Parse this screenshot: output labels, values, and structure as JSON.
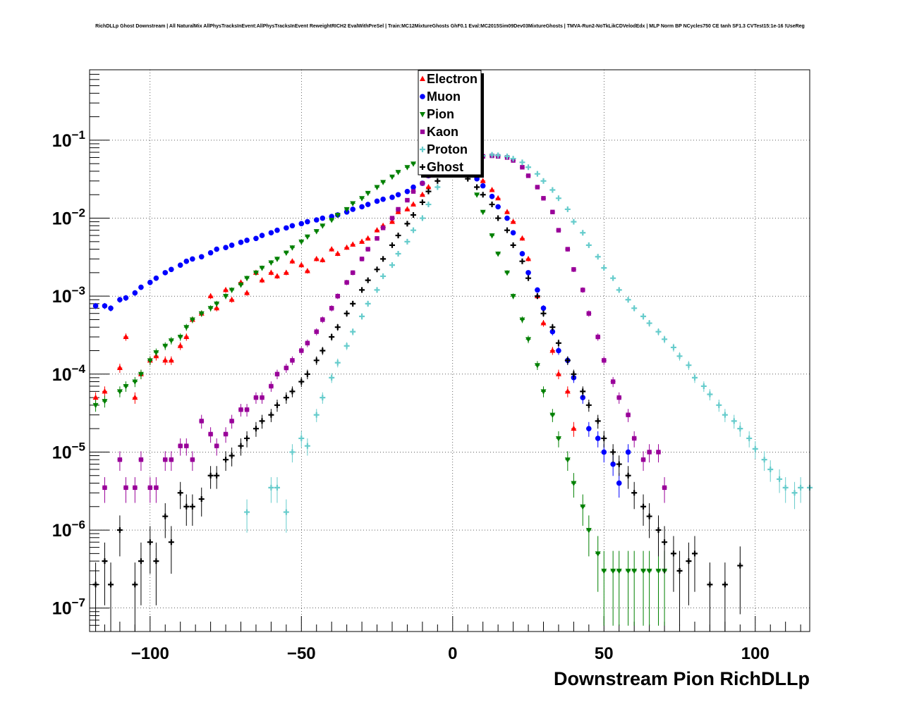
{
  "chart_data": {
    "type": "scatter",
    "title": "RichDLLp Ghost Downstream | All NaturalMix AllPhysTracksInEvent:AllPhysTracksInEvent ReweightRICH2 EvalWithPreSel | Train:MC12MixtureGhosts GhF0.1 Eval:MC2015Sim09Dev03MixtureGhosts | TMVA-Run2-NoTkLikCDVelodEdx | MLP Norm BP NCycles750 CE tanh SF1.3 CVTest15:1e-16 !UseReg",
    "xlabel": "Downstream Pion RichDLLp",
    "ylabel": "",
    "xlim": [
      -120,
      118
    ],
    "ylim": [
      5e-08,
      0.8
    ],
    "yscale": "log",
    "grid": true,
    "legend_position": "top-center",
    "xticks": [
      -100,
      -50,
      0,
      50,
      100
    ],
    "xtick_labels": [
      "−100",
      "−50",
      "0",
      "50",
      "100"
    ],
    "yticks": [
      1e-07,
      1e-06,
      1e-05,
      0.0001,
      0.001,
      0.01,
      0.1
    ],
    "ytick_labels": [
      {
        "base": "10",
        "exp": "−7"
      },
      {
        "base": "10",
        "exp": "−6"
      },
      {
        "base": "10",
        "exp": "−5"
      },
      {
        "base": "10",
        "exp": "−4"
      },
      {
        "base": "10",
        "exp": "−3"
      },
      {
        "base": "10",
        "exp": "−2"
      },
      {
        "base": "10",
        "exp": "−1"
      }
    ],
    "series": [
      {
        "name": "Electron",
        "color": "#ff0000",
        "marker": "triangle-up",
        "x": [
          -118,
          -115,
          -110,
          -108,
          -105,
          -103,
          -100,
          -98,
          -95,
          -93,
          -90,
          -88,
          -86,
          -83,
          -80,
          -78,
          -75,
          -73,
          -70,
          -68,
          -65,
          -63,
          -60,
          -58,
          -55,
          -53,
          -50,
          -48,
          -45,
          -43,
          -40,
          -38,
          -35,
          -33,
          -30,
          -28,
          -25,
          -23,
          -20,
          -18,
          -15,
          -13,
          -10,
          -8,
          -5,
          5,
          8,
          10,
          13,
          15,
          18,
          20,
          23,
          25,
          28,
          30,
          33,
          35,
          38,
          40
        ],
        "y": [
          5e-05,
          6e-05,
          0.00012,
          0.0003,
          5e-05,
          0.0001,
          0.00015,
          0.00017,
          0.00015,
          0.00015,
          0.00023,
          0.0003,
          0.0005,
          0.0006,
          0.001,
          0.0007,
          0.0012,
          0.0009,
          0.0015,
          0.0011,
          0.002,
          0.0016,
          0.002,
          0.0018,
          0.002,
          0.0028,
          0.0025,
          0.0021,
          0.003,
          0.0029,
          0.004,
          0.0035,
          0.0042,
          0.0046,
          0.005,
          0.0055,
          0.007,
          0.008,
          0.009,
          0.012,
          0.013,
          0.015,
          0.02,
          0.025,
          0.045,
          0.045,
          0.035,
          0.03,
          0.023,
          0.018,
          0.012,
          0.009,
          0.0055,
          0.003,
          0.001,
          0.00045,
          0.0002,
          0.0001,
          6e-05,
          2e-05
        ]
      },
      {
        "name": "Muon",
        "color": "#0000ff",
        "marker": "circle",
        "x": [
          -118,
          -115,
          -113,
          -110,
          -108,
          -105,
          -103,
          -100,
          -98,
          -95,
          -93,
          -90,
          -88,
          -86,
          -83,
          -80,
          -78,
          -75,
          -73,
          -70,
          -68,
          -65,
          -63,
          -60,
          -58,
          -55,
          -53,
          -50,
          -48,
          -45,
          -43,
          -40,
          -38,
          -35,
          -33,
          -30,
          -28,
          -25,
          -23,
          -20,
          -18,
          -15,
          -13,
          -10,
          -8,
          -5,
          8,
          10,
          13,
          15,
          18,
          20,
          23,
          25,
          28,
          30,
          33,
          35,
          38,
          40,
          43,
          45,
          48,
          50,
          53,
          55,
          58
        ],
        "y": [
          0.00075,
          0.00075,
          0.0007,
          0.0009,
          0.00095,
          0.0011,
          0.0013,
          0.0015,
          0.0017,
          0.002,
          0.0022,
          0.0025,
          0.0028,
          0.003,
          0.0032,
          0.0036,
          0.004,
          0.0042,
          0.0045,
          0.0049,
          0.0052,
          0.0055,
          0.006,
          0.0065,
          0.007,
          0.0075,
          0.008,
          0.0085,
          0.009,
          0.0095,
          0.01,
          0.0105,
          0.011,
          0.012,
          0.013,
          0.014,
          0.015,
          0.0165,
          0.0175,
          0.0185,
          0.02,
          0.022,
          0.025,
          0.028,
          0.035,
          0.04,
          0.032,
          0.026,
          0.019,
          0.014,
          0.01,
          0.0065,
          0.0035,
          0.002,
          0.0012,
          0.0007,
          0.00035,
          0.0002,
          0.00015,
          9e-05,
          5e-05,
          2e-05,
          1.5e-05,
          1e-05,
          7e-06,
          4e-06,
          1e-05
        ]
      },
      {
        "name": "Pion",
        "color": "#008000",
        "marker": "triangle-down",
        "x": [
          -118,
          -115,
          -110,
          -108,
          -105,
          -103,
          -100,
          -98,
          -95,
          -93,
          -90,
          -88,
          -86,
          -83,
          -80,
          -78,
          -75,
          -73,
          -70,
          -68,
          -65,
          -63,
          -60,
          -58,
          -55,
          -53,
          -50,
          -48,
          -45,
          -43,
          -40,
          -38,
          -35,
          -33,
          -30,
          -28,
          -25,
          -23,
          -20,
          -18,
          -15,
          -13,
          -10,
          -8,
          -5,
          5,
          8,
          10,
          13,
          15,
          18,
          20,
          23,
          25,
          28,
          30,
          33,
          35,
          38,
          40,
          43,
          45,
          48,
          50,
          53,
          55,
          58,
          60,
          63,
          65,
          68,
          70
        ],
        "y": [
          4e-05,
          4.5e-05,
          6e-05,
          7e-05,
          8e-05,
          0.0001,
          0.00015,
          0.00019,
          0.00023,
          0.00027,
          0.0003,
          0.0004,
          0.0005,
          0.0006,
          0.0007,
          0.0008,
          0.001,
          0.0012,
          0.0014,
          0.0017,
          0.002,
          0.0023,
          0.0027,
          0.003,
          0.0036,
          0.0042,
          0.005,
          0.0058,
          0.0068,
          0.008,
          0.0095,
          0.011,
          0.013,
          0.0155,
          0.018,
          0.021,
          0.025,
          0.029,
          0.034,
          0.039,
          0.045,
          0.05,
          0.055,
          0.06,
          0.056,
          0.035,
          0.02,
          0.012,
          0.006,
          0.0035,
          0.002,
          0.001,
          0.0005,
          0.00028,
          0.00013,
          6e-05,
          3e-05,
          1.5e-05,
          8e-06,
          4e-06,
          2e-06,
          1e-06,
          5e-07,
          3e-07,
          3e-07,
          3e-07,
          3e-07,
          3e-07,
          3e-07,
          3e-07,
          3e-07,
          3e-07
        ]
      },
      {
        "name": "Kaon",
        "color": "#990099",
        "marker": "square",
        "x": [
          -115,
          -110,
          -108,
          -105,
          -103,
          -100,
          -98,
          -95,
          -93,
          -90,
          -88,
          -86,
          -83,
          -80,
          -78,
          -75,
          -73,
          -70,
          -68,
          -65,
          -63,
          -60,
          -58,
          -55,
          -53,
          -50,
          -48,
          -45,
          -43,
          -40,
          -38,
          -35,
          -33,
          -30,
          -28,
          -25,
          -23,
          -20,
          -18,
          -15,
          -13,
          -10,
          -8,
          -5,
          5,
          8,
          10,
          13,
          15,
          18,
          20,
          23,
          25,
          28,
          30,
          33,
          35,
          38,
          40,
          43,
          45,
          48,
          50,
          53,
          55,
          58,
          60,
          63,
          65,
          68,
          70
        ],
        "y": [
          3.5e-06,
          8e-06,
          3.5e-06,
          3.5e-06,
          8e-06,
          3.5e-06,
          3.5e-06,
          8e-06,
          8e-06,
          1.2e-05,
          1.2e-05,
          8e-06,
          2.5e-05,
          1.7e-05,
          1.2e-05,
          1.7e-05,
          2.5e-05,
          3.5e-05,
          3.5e-05,
          5e-05,
          5e-05,
          7e-05,
          0.0001,
          0.00012,
          0.00015,
          0.0002,
          0.00025,
          0.00035,
          0.0005,
          0.0007,
          0.001,
          0.0015,
          0.002,
          0.003,
          0.004,
          0.0055,
          0.0075,
          0.01,
          0.013,
          0.017,
          0.022,
          0.028,
          0.035,
          0.042,
          0.055,
          0.06,
          0.062,
          0.063,
          0.062,
          0.06,
          0.055,
          0.045,
          0.035,
          0.025,
          0.018,
          0.012,
          0.007,
          0.004,
          0.0022,
          0.0012,
          0.0006,
          0.0003,
          0.00015,
          8e-05,
          5e-05,
          3e-05,
          1.5e-05,
          8e-06,
          1e-05,
          1e-05,
          3.5e-06
        ]
      },
      {
        "name": "Proton",
        "color": "#66cccc",
        "marker": "cross",
        "x": [
          -68,
          -60,
          -58,
          -55,
          -53,
          -50,
          -48,
          -45,
          -43,
          -40,
          -38,
          -35,
          -33,
          -30,
          -28,
          -25,
          -23,
          -20,
          -18,
          -15,
          -13,
          -10,
          -8,
          -5,
          5,
          8,
          10,
          13,
          15,
          18,
          20,
          23,
          25,
          28,
          30,
          33,
          35,
          38,
          40,
          43,
          45,
          48,
          50,
          53,
          55,
          58,
          60,
          63,
          65,
          68,
          70,
          73,
          75,
          78,
          80,
          83,
          85,
          88,
          90,
          93,
          95,
          98,
          100,
          103,
          105,
          108,
          110,
          113,
          115,
          118
        ],
        "y": [
          1.7e-06,
          3.5e-06,
          3.5e-06,
          1.7e-06,
          1e-05,
          1.5e-05,
          1.2e-05,
          3e-05,
          5e-05,
          9e-05,
          0.00014,
          0.00023,
          0.00035,
          0.00055,
          0.0008,
          0.0012,
          0.0018,
          0.0025,
          0.0035,
          0.005,
          0.007,
          0.01,
          0.015,
          0.025,
          0.055,
          0.06,
          0.063,
          0.065,
          0.064,
          0.062,
          0.058,
          0.052,
          0.045,
          0.037,
          0.03,
          0.023,
          0.018,
          0.013,
          0.009,
          0.0065,
          0.0045,
          0.0032,
          0.0023,
          0.0017,
          0.0012,
          0.0009,
          0.0007,
          0.00055,
          0.00045,
          0.00035,
          0.00028,
          0.00022,
          0.00017,
          0.00013,
          9e-05,
          7e-05,
          5.5e-05,
          4e-05,
          3e-05,
          2.5e-05,
          2e-05,
          1.5e-05,
          1.1e-05,
          8e-06,
          6e-06,
          4.5e-06,
          3.5e-06,
          3e-06,
          3.5e-06,
          3.5e-06
        ]
      },
      {
        "name": "Ghost",
        "color": "#000000",
        "marker": "cross",
        "x": [
          -118,
          -115,
          -113,
          -110,
          -105,
          -103,
          -100,
          -98,
          -95,
          -93,
          -90,
          -88,
          -86,
          -83,
          -80,
          -78,
          -75,
          -73,
          -70,
          -68,
          -65,
          -63,
          -60,
          -58,
          -55,
          -53,
          -50,
          -48,
          -45,
          -43,
          -40,
          -38,
          -35,
          -33,
          -30,
          -28,
          -25,
          -23,
          -20,
          -18,
          -15,
          -13,
          -10,
          -8,
          -5,
          5,
          8,
          10,
          13,
          15,
          18,
          20,
          23,
          25,
          28,
          30,
          33,
          35,
          38,
          40,
          43,
          45,
          48,
          50,
          53,
          55,
          58,
          60,
          63,
          65,
          68,
          70,
          73,
          75,
          78,
          80,
          85,
          90,
          95
        ],
        "y": [
          2e-07,
          4e-07,
          2e-07,
          1e-06,
          2e-07,
          4e-07,
          7e-07,
          4e-07,
          1.5e-06,
          7e-07,
          3e-06,
          2e-06,
          2e-06,
          2.5e-06,
          5e-06,
          5e-06,
          8e-06,
          9e-06,
          1.2e-05,
          1.5e-05,
          2e-05,
          2.5e-05,
          3e-05,
          4e-05,
          5e-05,
          6e-05,
          8e-05,
          0.0001,
          0.00015,
          0.0002,
          0.0003,
          0.0004,
          0.0006,
          0.0008,
          0.0012,
          0.0016,
          0.0022,
          0.003,
          0.0045,
          0.006,
          0.0085,
          0.011,
          0.016,
          0.022,
          0.03,
          0.032,
          0.025,
          0.02,
          0.015,
          0.01,
          0.007,
          0.0045,
          0.0028,
          0.0017,
          0.001,
          0.0006,
          0.0004,
          0.00025,
          0.00015,
          0.0001,
          6e-05,
          4e-05,
          2.5e-05,
          1.5e-05,
          1e-05,
          7e-06,
          5e-06,
          3e-06,
          2e-06,
          1.5e-06,
          1e-06,
          7e-07,
          5e-07,
          3e-07,
          4e-07,
          5e-07,
          2e-07,
          2e-07,
          3.5e-07
        ]
      }
    ]
  }
}
